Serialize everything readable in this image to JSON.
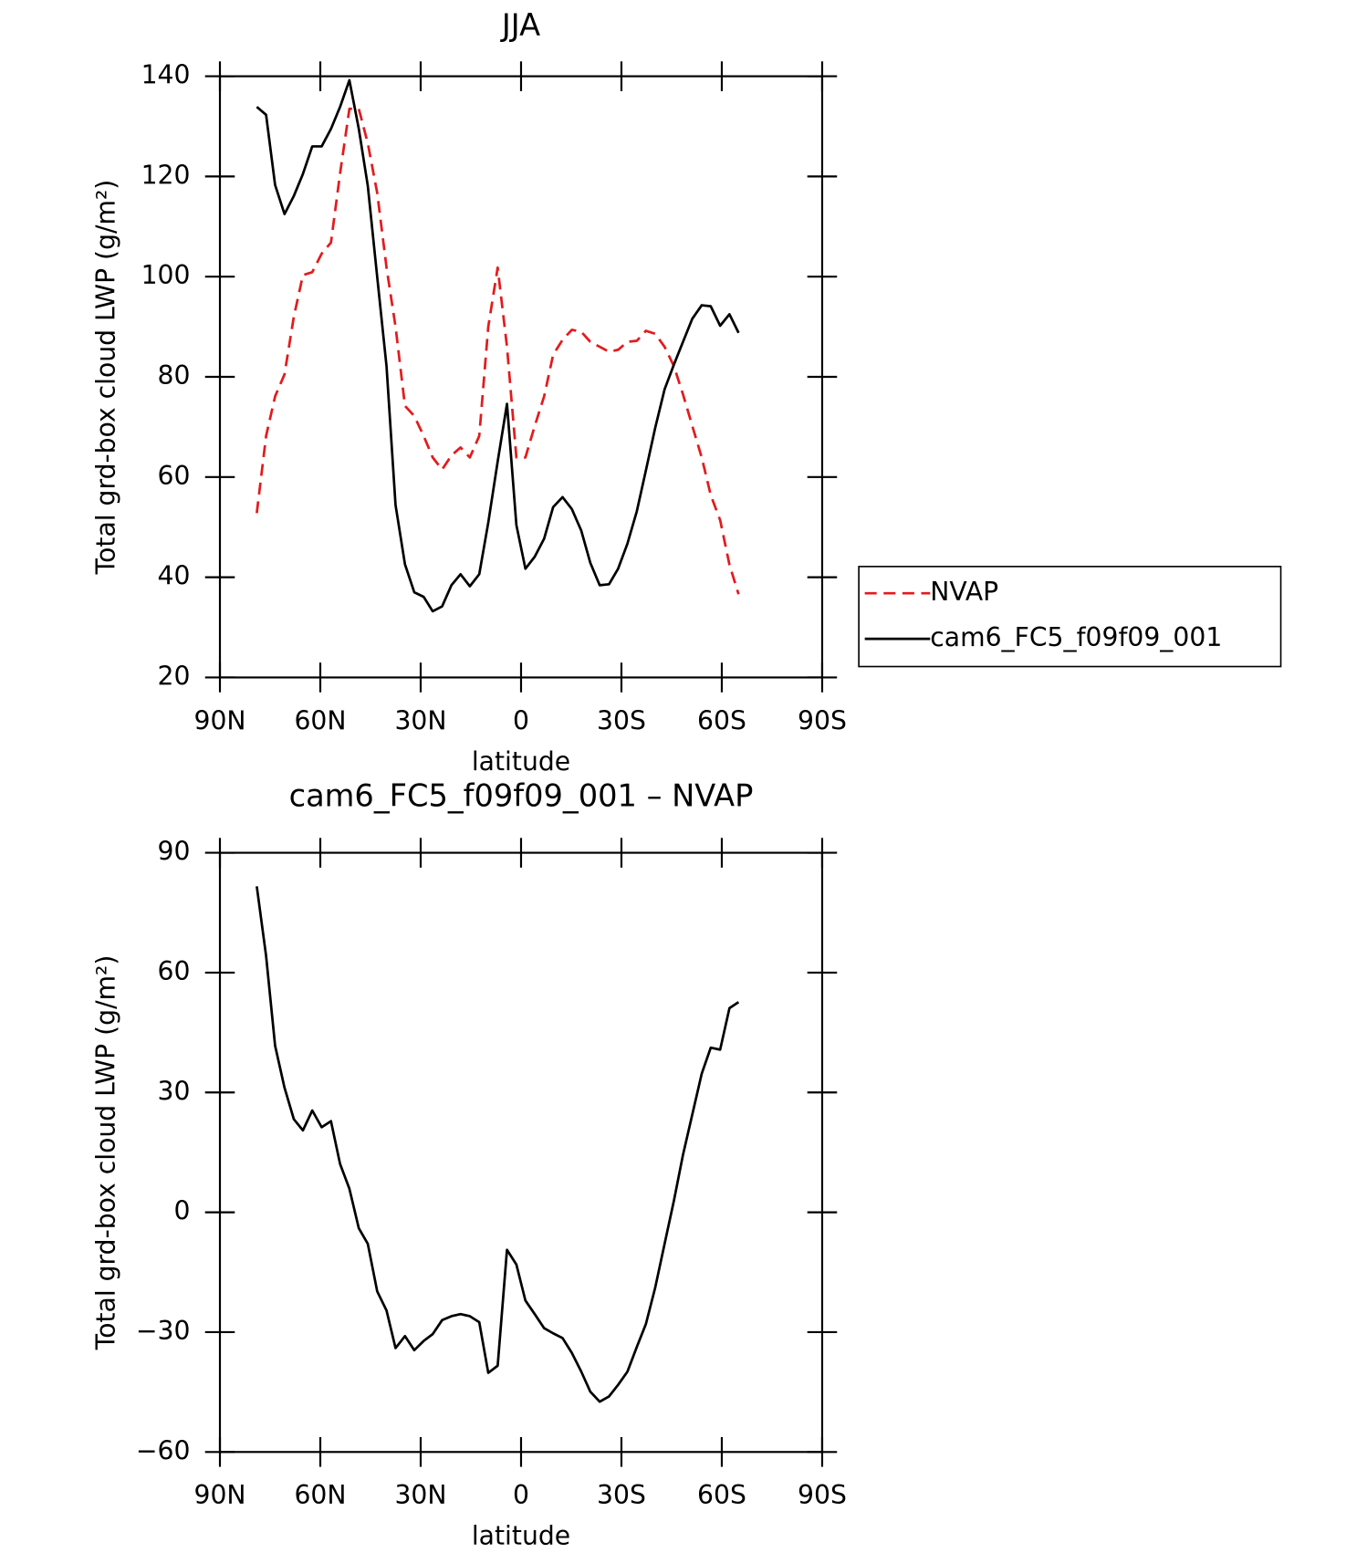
{
  "chart_data": [
    {
      "type": "line",
      "title": "JJA",
      "xlabel": "latitude",
      "ylabel": "Total grd-box cloud LWP (g/m²)",
      "x": [
        79.0,
        76.2,
        73.5,
        70.7,
        67.9,
        65.2,
        62.4,
        59.6,
        56.8,
        54.1,
        51.3,
        48.5,
        45.8,
        43.0,
        40.2,
        37.5,
        34.7,
        31.9,
        29.1,
        26.4,
        23.6,
        20.8,
        18.1,
        15.3,
        12.5,
        9.8,
        7.0,
        4.2,
        1.4,
        -1.3,
        -4.1,
        -6.9,
        -9.6,
        -12.4,
        -15.2,
        -18.0,
        -20.7,
        -23.5,
        -26.3,
        -29.0,
        -31.8,
        -34.6,
        -37.3,
        -40.1,
        -42.9,
        -45.7,
        -48.4,
        -51.2,
        -54.0,
        -56.7,
        -59.5,
        -62.3,
        -65.0
      ],
      "series": [
        {
          "name": "NVAP",
          "color": "#e41a1c",
          "line_style": "dashed",
          "values": [
            52.8,
            68.2,
            76.1,
            80.5,
            92.0,
            100.3,
            100.9,
            104.6,
            106.8,
            120.6,
            133.5,
            133.5,
            126.6,
            116.7,
            101.8,
            90.0,
            74.2,
            72.2,
            68.2,
            63.9,
            61.5,
            64.3,
            65.9,
            63.9,
            68.2,
            90.0,
            101.8,
            86.0,
            63.9,
            63.9,
            70.2,
            76.1,
            84.4,
            87.4,
            89.4,
            89.0,
            87.0,
            86.0,
            85.0,
            85.4,
            87.0,
            87.2,
            89.2,
            88.6,
            86.0,
            82.1,
            76.5,
            70.2,
            63.9,
            56.4,
            51.4,
            42.5,
            36.6
          ]
        },
        {
          "name": "cam6_FC5_f09f09_001",
          "color": "#000000",
          "line_style": "solid",
          "values": [
            133.9,
            132.3,
            118.3,
            112.5,
            116.1,
            120.5,
            126.0,
            126.0,
            129.5,
            133.9,
            139.2,
            129.5,
            118.1,
            99.9,
            82.1,
            54.4,
            42.6,
            37.0,
            36.1,
            33.2,
            34.2,
            38.4,
            40.6,
            38.2,
            40.6,
            50.9,
            63.1,
            74.6,
            50.4,
            41.7,
            44.1,
            47.7,
            54.0,
            56.0,
            53.6,
            49.3,
            42.9,
            38.4,
            38.6,
            41.7,
            46.7,
            53.2,
            61.3,
            69.8,
            77.5,
            82.5,
            87.0,
            91.6,
            94.3,
            94.1,
            90.2,
            92.5,
            88.8
          ]
        }
      ],
      "xlim": [
        90,
        -90
      ],
      "xticks": [
        {
          "value": 90,
          "label": "90N"
        },
        {
          "value": 60,
          "label": "60N"
        },
        {
          "value": 30,
          "label": "30N"
        },
        0,
        {
          "value": -30,
          "label": "30S"
        },
        {
          "value": -60,
          "label": "60S"
        },
        {
          "value": -90,
          "label": "90S"
        }
      ],
      "ylim": [
        20,
        140
      ],
      "yticks": [
        20,
        40,
        60,
        80,
        100,
        120,
        140
      ],
      "legend": "right"
    },
    {
      "type": "line",
      "title": "cam6_FC5_f09f09_001 – NVAP",
      "xlabel": "latitude",
      "ylabel": "Total grd-box cloud LWP (g/m²)",
      "x": [
        79.0,
        76.2,
        73.5,
        70.7,
        67.9,
        65.2,
        62.4,
        59.6,
        56.8,
        54.1,
        51.3,
        48.5,
        45.8,
        43.0,
        40.2,
        37.5,
        34.7,
        31.9,
        29.1,
        26.4,
        23.6,
        20.8,
        18.1,
        15.3,
        12.5,
        9.8,
        7.0,
        4.2,
        1.4,
        -1.3,
        -4.1,
        -6.9,
        -9.6,
        -12.4,
        -15.2,
        -18.0,
        -20.7,
        -23.5,
        -26.3,
        -29.0,
        -31.8,
        -34.6,
        -37.3,
        -40.1,
        -42.9,
        -45.7,
        -48.4,
        -51.2,
        -54.0,
        -56.7,
        -59.5,
        -62.3,
        -65.0
      ],
      "series": [
        {
          "color": "#000000",
          "line_style": "solid",
          "values": [
            81.6,
            64.2,
            41.7,
            31.2,
            23.3,
            20.5,
            25.5,
            21.3,
            22.8,
            12.1,
            5.9,
            -4.0,
            -7.9,
            -19.8,
            -24.6,
            -34.0,
            -31.0,
            -34.5,
            -32.2,
            -30.5,
            -27.0,
            -26.0,
            -25.5,
            -26.0,
            -27.5,
            -40.2,
            -38.4,
            -9.4,
            -13.1,
            -22.1,
            -25.5,
            -29.0,
            -30.3,
            -31.5,
            -35.2,
            -39.9,
            -44.9,
            -47.4,
            -46.1,
            -43.2,
            -39.9,
            -33.7,
            -28.0,
            -18.9,
            -7.9,
            3.0,
            14.4,
            24.5,
            34.7,
            41.2,
            40.7,
            51.1,
            52.6
          ]
        }
      ],
      "xlim": [
        90,
        -90
      ],
      "xticks": [
        {
          "value": 90,
          "label": "90N"
        },
        {
          "value": 60,
          "label": "60N"
        },
        {
          "value": 30,
          "label": "30N"
        },
        0,
        {
          "value": -30,
          "label": "30S"
        },
        {
          "value": -60,
          "label": "60S"
        },
        {
          "value": -90,
          "label": "90S"
        }
      ],
      "ylim": [
        -60,
        90
      ],
      "yticks": [
        {
          "value": -60,
          "label": "−60"
        },
        {
          "value": -30,
          "label": "−30"
        },
        0,
        30,
        60,
        90
      ]
    }
  ]
}
